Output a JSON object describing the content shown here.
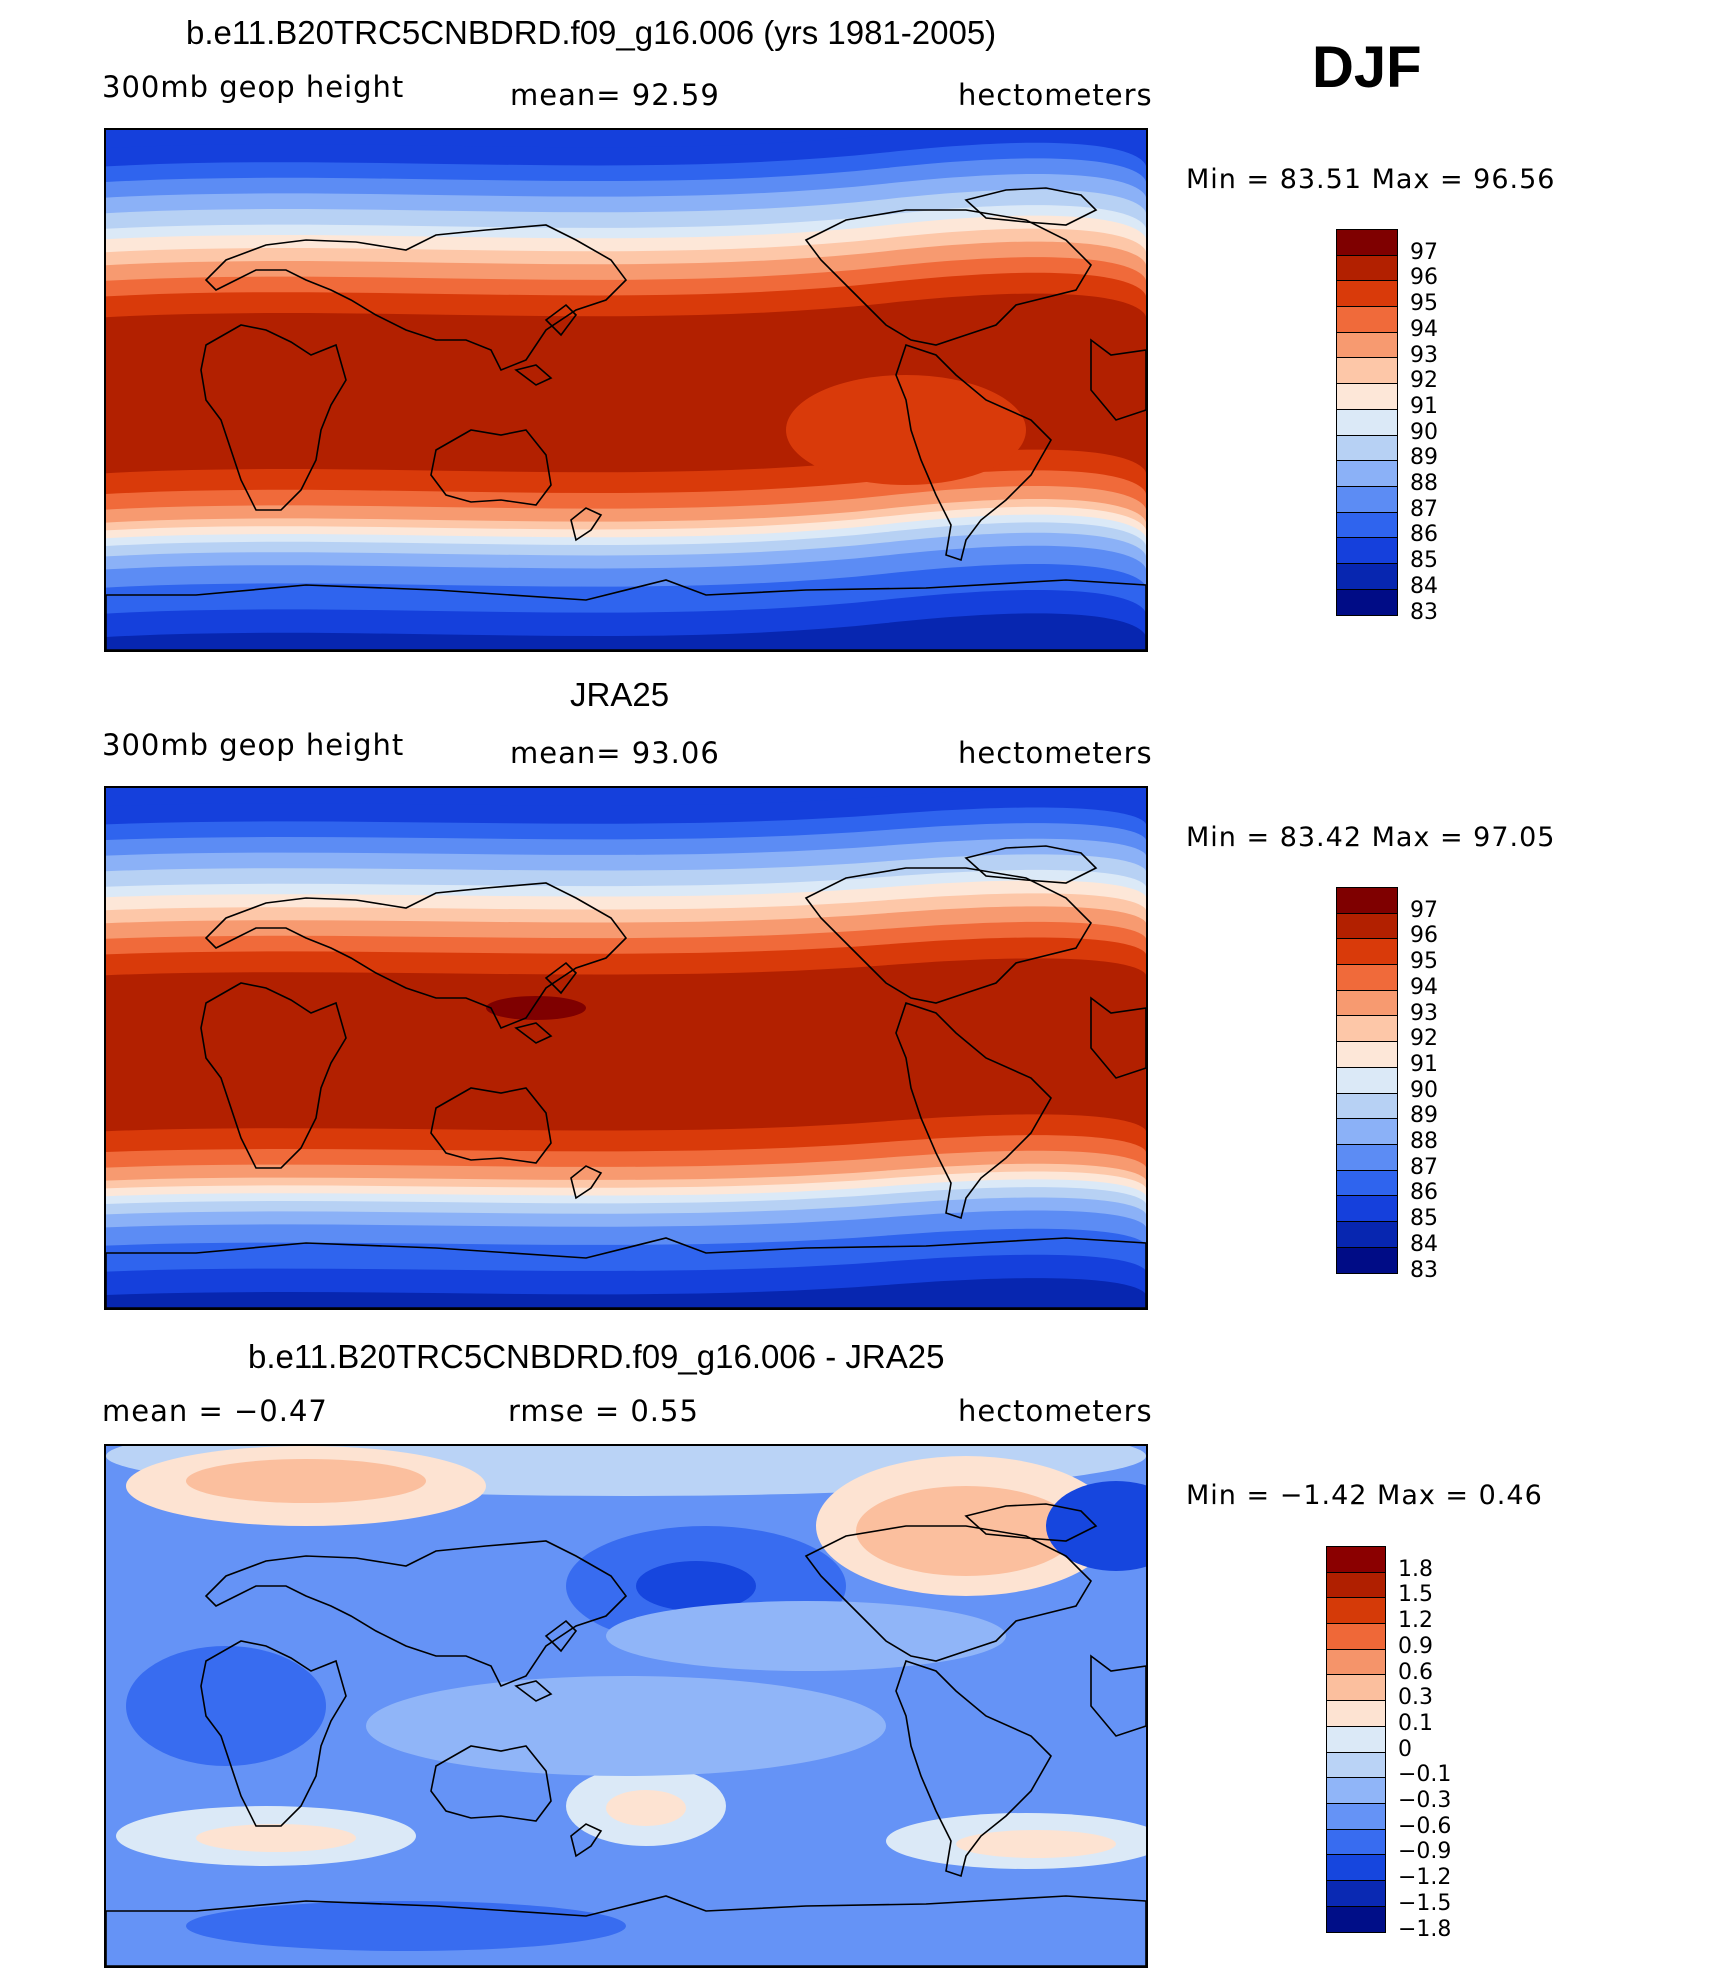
{
  "season": "DJF",
  "panels": [
    {
      "title": "b.e11.B20TRC5CNBDRD.f09_g16.006 (yrs 1981-2005)",
      "left": "300mb geop height",
      "center": "mean=   92.59",
      "right": "hectometers",
      "minmax": "Min =   83.51  Max =   96.56",
      "scale": "abs",
      "colorbar": {
        "levels": [
          "97",
          "96",
          "95",
          "94",
          "93",
          "92",
          "91",
          "90",
          "89",
          "88",
          "87",
          "86",
          "85",
          "84",
          "83"
        ]
      }
    },
    {
      "title": "JRA25",
      "left": "300mb geop height",
      "center": "mean=   93.06",
      "right": "hectometers",
      "minmax": "Min =   83.42  Max =   97.05",
      "scale": "abs",
      "colorbar": {
        "levels": [
          "97",
          "96",
          "95",
          "94",
          "93",
          "92",
          "91",
          "90",
          "89",
          "88",
          "87",
          "86",
          "85",
          "84",
          "83"
        ]
      }
    },
    {
      "title": "b.e11.B20TRC5CNBDRD.f09_g16.006 - JRA25",
      "left": "mean =   −0.47",
      "center": "rmse =    0.55",
      "right": "hectometers",
      "minmax": "Min =   −1.42  Max =    0.46",
      "scale": "diff",
      "colorbar": {
        "levels": [
          "1.8",
          "1.5",
          "1.2",
          "0.9",
          "0.6",
          "0.3",
          "0.1",
          "0",
          "−0.1",
          "−0.3",
          "−0.6",
          "−0.9",
          "−1.2",
          "−1.5",
          "−1.8"
        ]
      }
    }
  ],
  "colors": {
    "abs": [
      "#7f0000",
      "#b22000",
      "#d93a0a",
      "#f06a3a",
      "#f79a70",
      "#fdc7a8",
      "#fde7d8",
      "#dbe9f7",
      "#b7d1f4",
      "#8bb1f7",
      "#5c8cf4",
      "#2f64ee",
      "#1540dc",
      "#0726b0",
      "#000c86"
    ],
    "diff": [
      "#8b0000",
      "#b01f00",
      "#d53a08",
      "#ef6838",
      "#f5946a",
      "#fbbf9e",
      "#fde3d2",
      "#dbe9f7",
      "#bad3f6",
      "#90b5f8",
      "#6593f6",
      "#386cf0",
      "#1646de",
      "#0a29b3",
      "#000e88"
    ]
  }
}
